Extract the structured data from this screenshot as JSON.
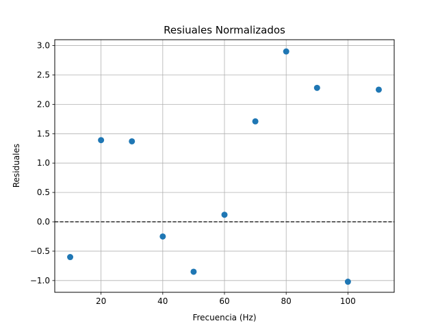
{
  "chart_data": {
    "type": "scatter",
    "title": "Resiuales Normalizados",
    "xlabel": "Frecuencia (Hz)",
    "ylabel": "Residuales",
    "xlim": [
      5,
      115
    ],
    "ylim": [
      -1.2,
      3.1
    ],
    "x_ticks": [
      20,
      40,
      60,
      80,
      100
    ],
    "y_ticks": [
      -1.0,
      -0.5,
      0.0,
      0.5,
      1.0,
      1.5,
      2.0,
      2.5,
      3.0
    ],
    "x_tick_labels": [
      "20",
      "40",
      "60",
      "80",
      "100"
    ],
    "y_tick_labels": [
      "−1.0",
      "−0.5",
      "0.0",
      "0.5",
      "1.0",
      "1.5",
      "2.0",
      "2.5",
      "3.0"
    ],
    "grid": true,
    "reference_line": {
      "y": 0,
      "style": "dashed",
      "color": "#000000"
    },
    "series": [
      {
        "color": "#1f77b4",
        "points": [
          {
            "x": 10,
            "y": -0.6
          },
          {
            "x": 20,
            "y": 1.39
          },
          {
            "x": 30,
            "y": 1.37
          },
          {
            "x": 40,
            "y": -0.25
          },
          {
            "x": 50,
            "y": -0.85
          },
          {
            "x": 60,
            "y": 0.12
          },
          {
            "x": 70,
            "y": 1.71
          },
          {
            "x": 80,
            "y": 2.9
          },
          {
            "x": 90,
            "y": 2.28
          },
          {
            "x": 100,
            "y": -1.02
          },
          {
            "x": 110,
            "y": 2.25
          }
        ]
      }
    ]
  }
}
